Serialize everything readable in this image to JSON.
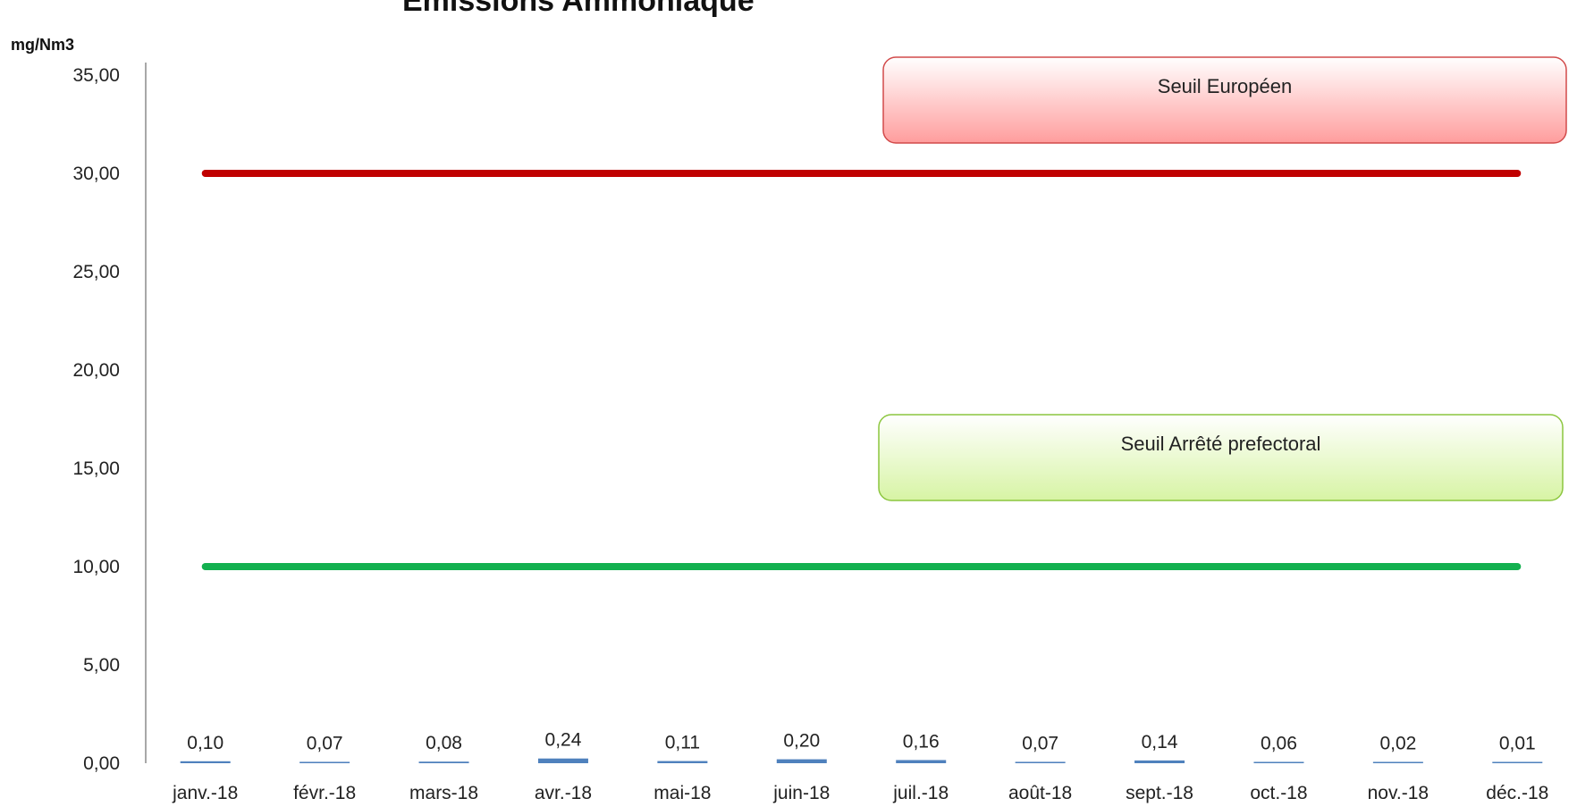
{
  "chart_data": {
    "type": "bar",
    "title": "Emissions Ammoniaque",
    "ylabel": "mg/Nm3",
    "xlabel": "",
    "ylim": [
      0,
      35
    ],
    "yticks": [
      "0,00",
      "5,00",
      "10,00",
      "15,00",
      "20,00",
      "25,00",
      "30,00",
      "35,00"
    ],
    "categories": [
      "janv.-18",
      "févr.-18",
      "mars-18",
      "avr.-18",
      "mai-18",
      "juin-18",
      "juil.-18",
      "août-18",
      "sept.-18",
      "oct.-18",
      "nov.-18",
      "déc.-18"
    ],
    "values": [
      0.1,
      0.07,
      0.08,
      0.24,
      0.11,
      0.2,
      0.16,
      0.07,
      0.14,
      0.06,
      0.02,
      0.01
    ],
    "value_labels": [
      "0,10",
      "0,07",
      "0,08",
      "0,24",
      "0,11",
      "0,20",
      "0,16",
      "0,07",
      "0,14",
      "0,06",
      "0,02",
      "0,01"
    ],
    "thresholds": [
      {
        "label": "Seuil Européen",
        "value": 30,
        "color": "#c00000",
        "box_fill": "#ffc4c4",
        "box_stroke": "#d24a4a"
      },
      {
        "label": "Seuil Arrêté prefectoral",
        "value": 10,
        "color": "#13b04f",
        "box_fill": "#e3f7c3",
        "box_stroke": "#8cc63f"
      }
    ],
    "bar_color": "#4f81bd",
    "grid": false
  }
}
